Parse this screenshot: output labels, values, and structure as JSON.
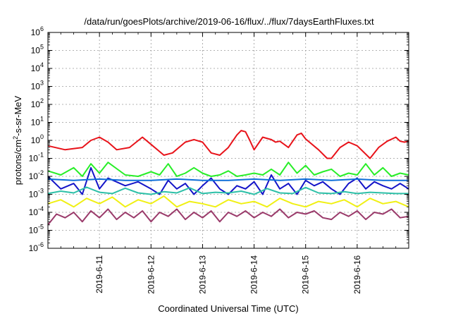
{
  "chart_data": {
    "type": "line",
    "title": "/data/run/goesPlots/archive/2019-06-16/flux/../flux/7daysEarthFluxes.txt",
    "xlabel": "Coordinated Universal Time (UTC)",
    "ylabel": {
      "base": "protons/cm",
      "sup": "2",
      "rest": "-s-sr-MeV"
    },
    "y_scale": "log",
    "ylim": [
      1e-06,
      1000000.0
    ],
    "y_ticks": [
      {
        "exp": -6,
        "base": "10",
        "sup": "-6"
      },
      {
        "exp": -5,
        "base": "10",
        "sup": "-5"
      },
      {
        "exp": -4,
        "base": "10",
        "sup": "-4"
      },
      {
        "exp": -3,
        "base": "10",
        "sup": "-3"
      },
      {
        "exp": -2,
        "base": "10",
        "sup": "-2"
      },
      {
        "exp": -1,
        "base": "10",
        "sup": "-1"
      },
      {
        "exp": 0,
        "base": "10",
        "sup": "0"
      },
      {
        "exp": 1,
        "base": "10",
        "sup": "1"
      },
      {
        "exp": 2,
        "base": "10",
        "sup": "2"
      },
      {
        "exp": 3,
        "base": "10",
        "sup": "3"
      },
      {
        "exp": 4,
        "base": "10",
        "sup": "4"
      },
      {
        "exp": 5,
        "base": "10",
        "sup": "5"
      },
      {
        "exp": 6,
        "base": "10",
        "sup": "6"
      }
    ],
    "xlim": [
      0,
      168
    ],
    "x_ticks": [
      {
        "hours": 24,
        "label": "2019-6-11"
      },
      {
        "hours": 48,
        "label": "2019-6-12"
      },
      {
        "hours": 72,
        "label": "2019-6-13"
      },
      {
        "hours": 96,
        "label": "2019-6-14"
      },
      {
        "hours": 120,
        "label": "2019-6-15"
      },
      {
        "hours": 144,
        "label": "2019-6-16"
      }
    ],
    "x_unit": "hours from 2019-06-10 00:00 UTC",
    "grid": true,
    "series": [
      {
        "color": "#e8131a",
        "x": [
          0,
          8,
          16,
          20,
          24,
          28,
          32,
          38,
          44,
          48,
          54,
          58,
          64,
          68,
          72,
          76,
          80,
          84,
          88,
          90,
          92,
          94,
          96,
          100,
          104,
          106,
          108,
          112,
          116,
          118,
          120,
          126,
          130,
          132,
          136,
          140,
          144,
          150,
          154,
          158,
          162,
          164,
          166,
          168
        ],
        "values": [
          0.5,
          0.3,
          0.4,
          1.0,
          1.5,
          0.8,
          0.3,
          0.4,
          1.5,
          0.6,
          0.15,
          0.2,
          0.8,
          1.1,
          0.8,
          0.2,
          0.15,
          0.4,
          2.0,
          3.5,
          3.0,
          1.0,
          0.3,
          1.5,
          1.1,
          0.8,
          0.9,
          0.4,
          2.0,
          2.5,
          1.2,
          0.3,
          0.1,
          0.1,
          0.4,
          0.8,
          0.5,
          0.1,
          0.4,
          0.9,
          1.5,
          0.9,
          0.8,
          0.9
        ]
      },
      {
        "color": "#28ee28",
        "x": [
          0,
          6,
          12,
          16,
          20,
          24,
          28,
          36,
          42,
          48,
          52,
          56,
          60,
          64,
          68,
          72,
          76,
          80,
          84,
          88,
          92,
          96,
          100,
          104,
          108,
          112,
          116,
          120,
          124,
          128,
          132,
          136,
          140,
          144,
          148,
          152,
          156,
          160,
          164,
          168
        ],
        "values": [
          0.02,
          0.012,
          0.03,
          0.01,
          0.05,
          0.015,
          0.06,
          0.012,
          0.01,
          0.018,
          0.012,
          0.05,
          0.01,
          0.015,
          0.03,
          0.015,
          0.01,
          0.012,
          0.02,
          0.01,
          0.012,
          0.015,
          0.012,
          0.025,
          0.012,
          0.06,
          0.015,
          0.04,
          0.012,
          0.018,
          0.025,
          0.01,
          0.015,
          0.012,
          0.05,
          0.012,
          0.03,
          0.01,
          0.015,
          0.012
        ]
      },
      {
        "color": "#1414c8",
        "x": [
          0,
          6,
          12,
          16,
          20,
          24,
          28,
          36,
          42,
          48,
          52,
          56,
          60,
          64,
          68,
          72,
          76,
          80,
          84,
          88,
          92,
          96,
          100,
          104,
          108,
          112,
          116,
          120,
          124,
          128,
          132,
          136,
          140,
          144,
          148,
          152,
          156,
          160,
          164,
          168
        ],
        "values": [
          0.01,
          0.002,
          0.004,
          0.001,
          0.03,
          0.002,
          0.008,
          0.003,
          0.005,
          0.002,
          0.001,
          0.006,
          0.002,
          0.004,
          0.001,
          0.003,
          0.008,
          0.002,
          0.001,
          0.003,
          0.002,
          0.005,
          0.001,
          0.012,
          0.002,
          0.004,
          0.001,
          0.006,
          0.003,
          0.005,
          0.002,
          0.001,
          0.004,
          0.008,
          0.002,
          0.005,
          0.003,
          0.002,
          0.004,
          0.002
        ]
      },
      {
        "color": "#0e6ed8",
        "x": [
          0,
          12,
          24,
          36,
          48,
          60,
          72,
          84,
          96,
          108,
          120,
          132,
          144,
          156,
          168
        ],
        "values": [
          0.007,
          0.006,
          0.007,
          0.006,
          0.006,
          0.007,
          0.006,
          0.006,
          0.007,
          0.006,
          0.007,
          0.006,
          0.007,
          0.006,
          0.006
        ]
      },
      {
        "color": "#2dc0a8",
        "x": [
          0,
          6,
          12,
          18,
          24,
          30,
          36,
          42,
          48,
          54,
          60,
          66,
          72,
          78,
          84,
          90,
          96,
          102,
          108,
          114,
          120,
          126,
          132,
          138,
          144,
          150,
          156,
          162,
          168
        ],
        "values": [
          0.0011,
          0.0015,
          0.0012,
          0.0025,
          0.0013,
          0.0011,
          0.0022,
          0.0012,
          0.001,
          0.0014,
          0.0012,
          0.0023,
          0.0011,
          0.0013,
          0.0012,
          0.0015,
          0.001,
          0.0021,
          0.0012,
          0.0011,
          0.0024,
          0.0012,
          0.0011,
          0.0014,
          0.0011,
          0.0013,
          0.0012,
          0.0011,
          0.0011
        ]
      },
      {
        "color": "#f0f014",
        "x": [
          0,
          6,
          12,
          18,
          24,
          30,
          36,
          42,
          48,
          54,
          60,
          66,
          72,
          78,
          84,
          90,
          96,
          102,
          108,
          114,
          120,
          126,
          132,
          138,
          144,
          150,
          156,
          162,
          168
        ],
        "values": [
          0.0003,
          0.0005,
          0.0002,
          0.0006,
          0.0003,
          0.0007,
          0.0002,
          0.0005,
          0.0003,
          0.0008,
          0.0002,
          0.0004,
          0.0003,
          0.0002,
          0.0005,
          0.0003,
          0.0004,
          0.0002,
          0.0006,
          0.0003,
          0.0002,
          0.0004,
          0.0003,
          0.0005,
          0.0002,
          0.0006,
          0.0003,
          0.0004,
          0.0002
        ]
      },
      {
        "color": "#9a3a6a",
        "x": [
          0,
          4,
          8,
          12,
          16,
          20,
          24,
          28,
          32,
          36,
          40,
          44,
          48,
          52,
          56,
          60,
          64,
          68,
          72,
          76,
          80,
          84,
          88,
          92,
          96,
          100,
          104,
          108,
          112,
          116,
          120,
          124,
          128,
          132,
          136,
          140,
          144,
          148,
          152,
          156,
          160,
          164,
          168
        ],
        "values": [
          2e-05,
          8e-05,
          5e-05,
          0.0001,
          3e-05,
          0.00012,
          5e-05,
          0.00015,
          4e-05,
          0.0001,
          5e-05,
          0.00012,
          3e-05,
          0.0001,
          6e-05,
          0.00015,
          4e-05,
          0.0001,
          5e-05,
          0.00012,
          3e-05,
          0.0001,
          6e-05,
          0.00012,
          5e-05,
          0.0001,
          6e-05,
          0.00015,
          5e-05,
          0.0001,
          8e-05,
          0.00012,
          5e-05,
          4e-05,
          0.0001,
          6e-05,
          0.00012,
          4e-05,
          0.0001,
          8e-05,
          0.00015,
          5e-05,
          6e-05
        ]
      }
    ]
  }
}
